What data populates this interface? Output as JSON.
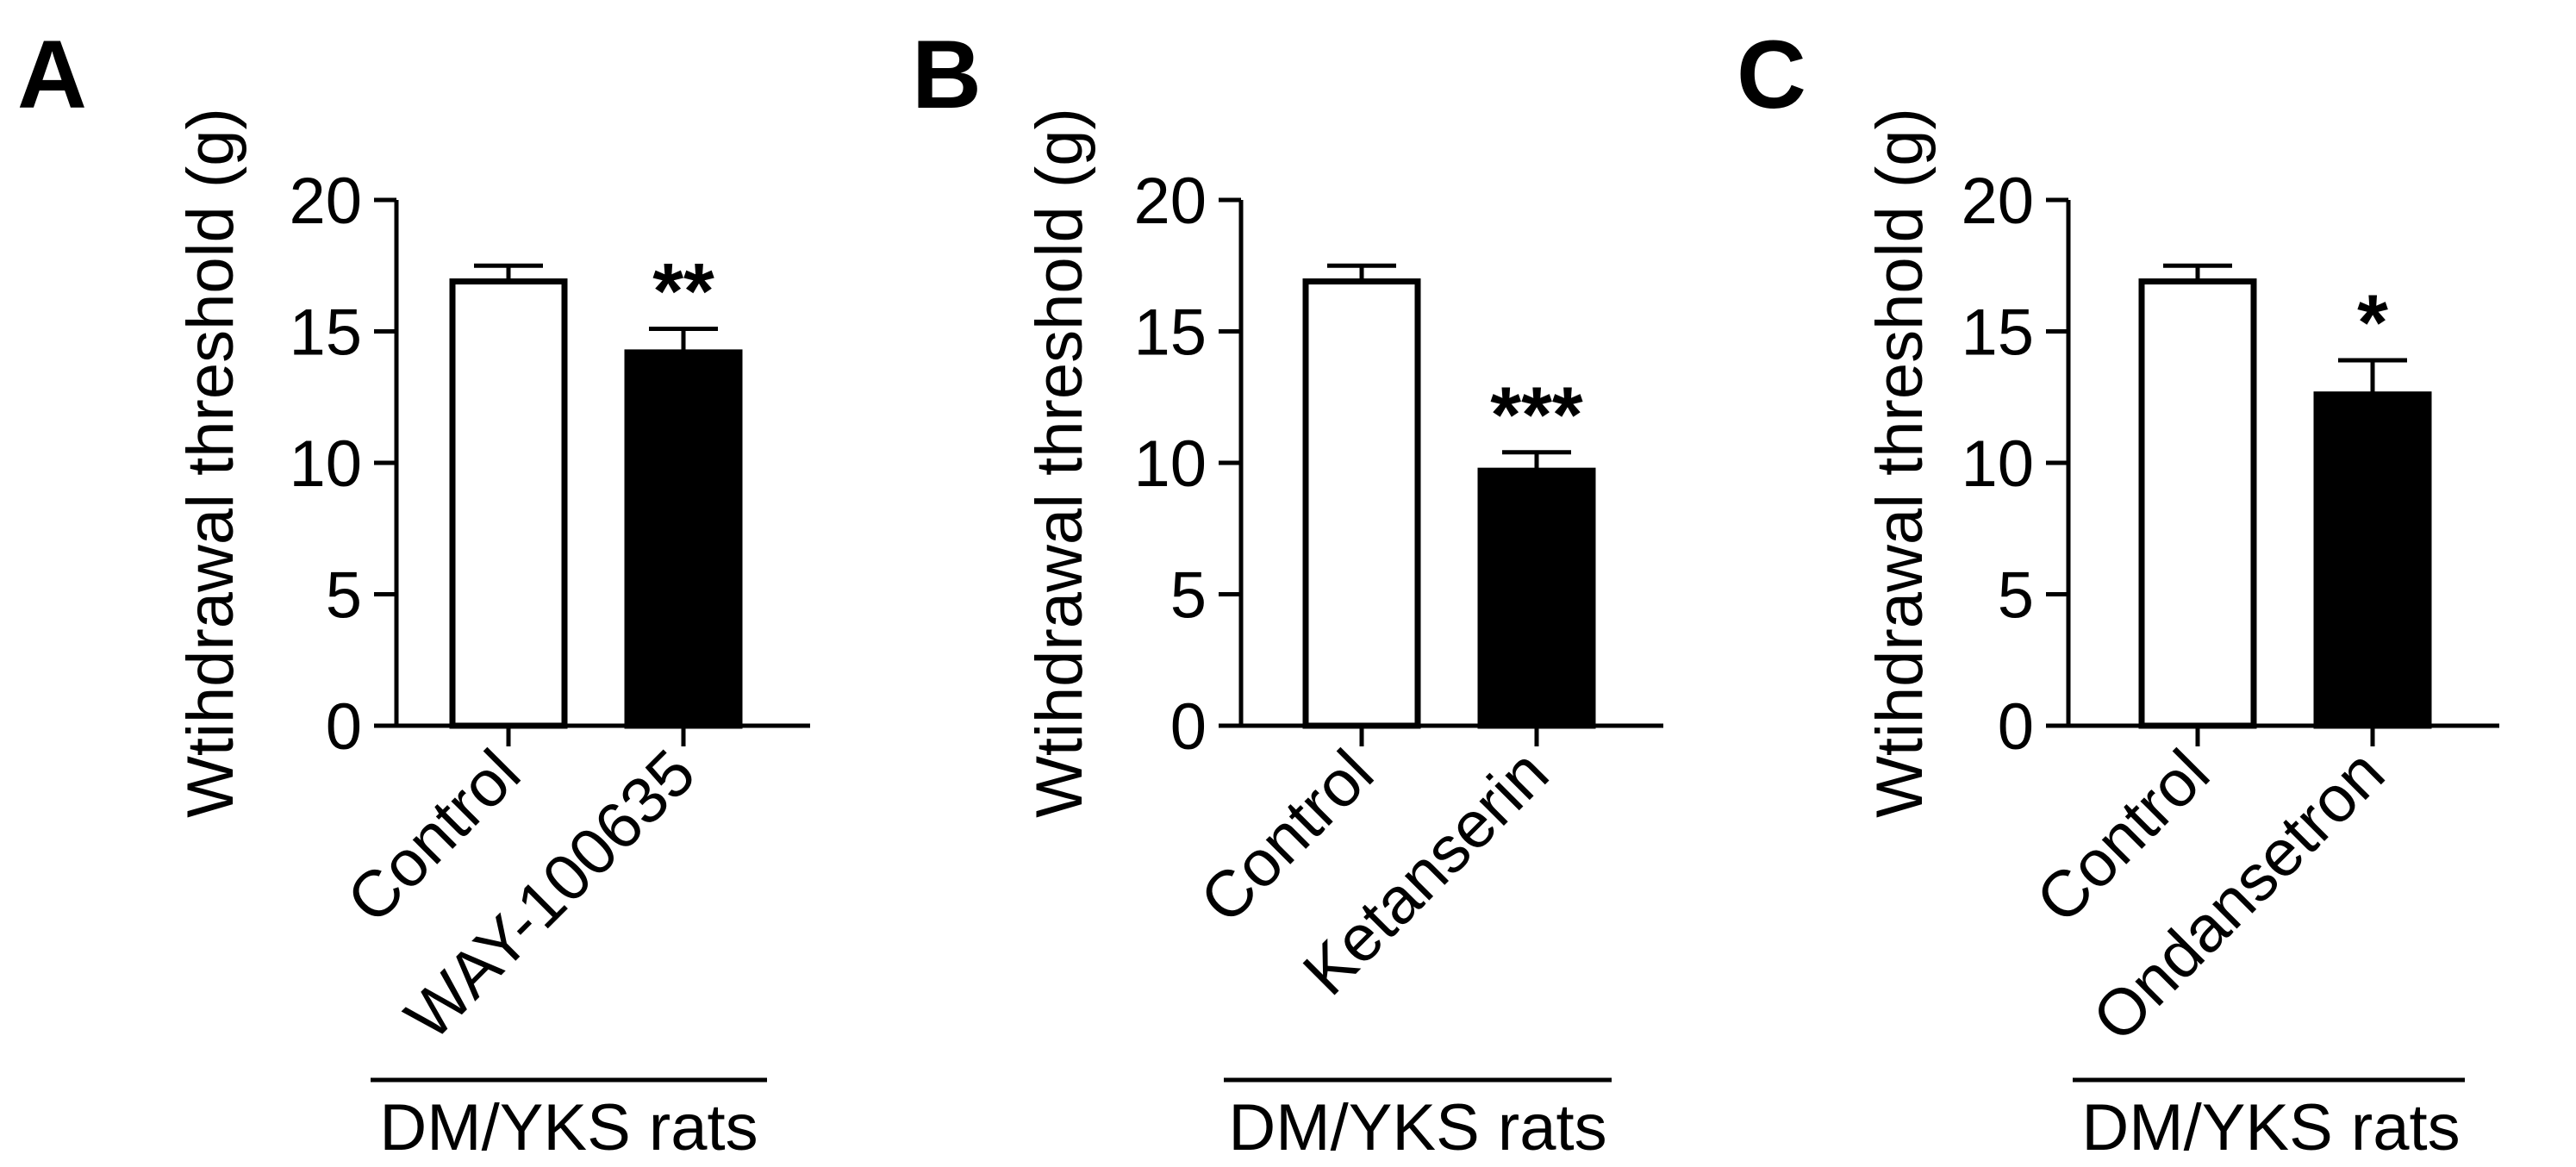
{
  "chart_data": [
    {
      "type": "bar",
      "panel": "A",
      "ylabel": "Wtihdrawal threshold (g)",
      "ylim": [
        0,
        20
      ],
      "yticks": [
        "0",
        "5",
        "10",
        "15",
        "20"
      ],
      "categories": [
        "Control",
        "WAY-100635"
      ],
      "values": [
        16.9,
        14.2
      ],
      "errors": [
        0.6,
        0.9
      ],
      "significance": [
        "",
        "**"
      ],
      "bar_fills": [
        "#ffffff",
        "#000000"
      ],
      "group_label": "DM/YKS rats",
      "grid": false
    },
    {
      "type": "bar",
      "panel": "B",
      "ylabel": "Wtihdrawal threshold (g)",
      "ylim": [
        0,
        20
      ],
      "yticks": [
        "0",
        "5",
        "10",
        "15",
        "20"
      ],
      "categories": [
        "Control",
        "Ketanserin"
      ],
      "values": [
        16.9,
        9.7
      ],
      "errors": [
        0.6,
        0.7
      ],
      "significance": [
        "",
        "***"
      ],
      "bar_fills": [
        "#ffffff",
        "#000000"
      ],
      "group_label": "DM/YKS rats",
      "grid": false
    },
    {
      "type": "bar",
      "panel": "C",
      "ylabel": "Wtihdrawal threshold (g)",
      "ylim": [
        0,
        20
      ],
      "yticks": [
        "0",
        "5",
        "10",
        "15",
        "20"
      ],
      "categories": [
        "Control",
        "Ondansetron"
      ],
      "values": [
        16.9,
        12.6
      ],
      "errors": [
        0.6,
        1.3
      ],
      "significance": [
        "",
        "*"
      ],
      "bar_fills": [
        "#ffffff",
        "#000000"
      ],
      "group_label": "DM/YKS rats",
      "grid": false
    }
  ]
}
